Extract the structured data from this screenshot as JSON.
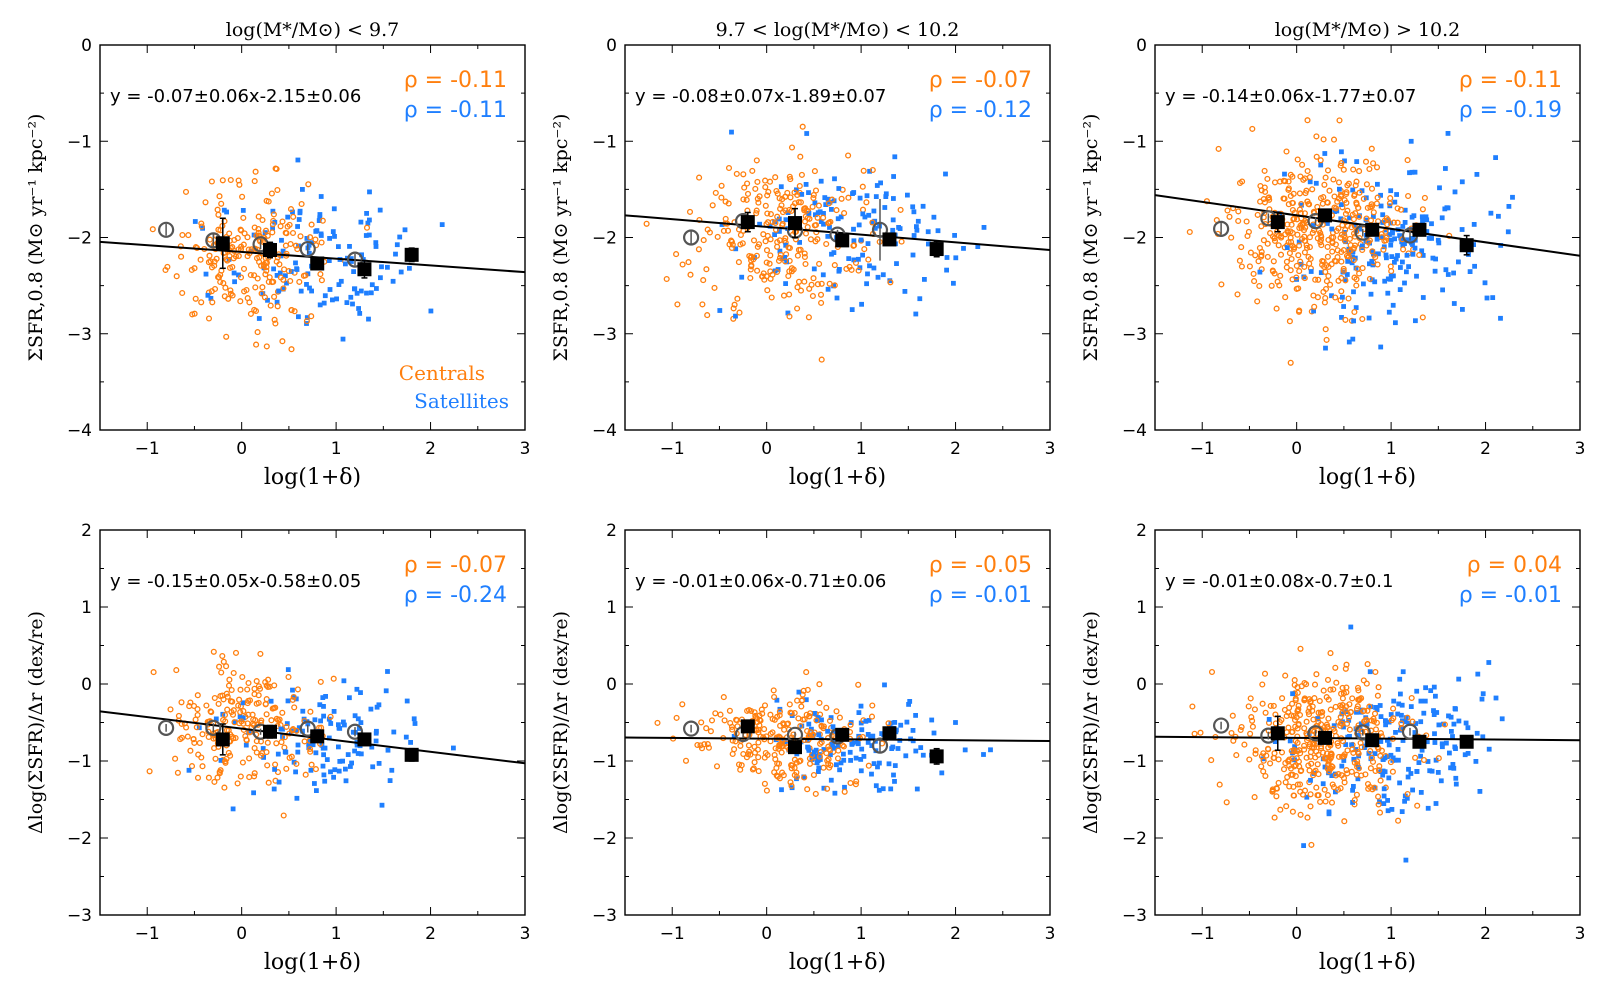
{
  "figure": {
    "legend": {
      "centrals_label": "Centrals",
      "satellites_label": "Satellites"
    },
    "colors": {
      "centrals": "#ff7f0e",
      "satellites": "#1f7fff",
      "binned": "#000000",
      "binned_open": "#555555"
    }
  },
  "chart_data": [
    {
      "type": "scatter",
      "panel": "top-left",
      "title": "log(M*/M⊙) < 9.7",
      "xlabel": "log(1+δ)",
      "ylabel": "ΣSFR,0.8 (M⊙ yr⁻¹ kpc⁻²)",
      "xlim": [
        -1.5,
        3
      ],
      "ylim": [
        -4,
        0
      ],
      "xticks": [
        -1,
        0,
        1,
        2,
        3
      ],
      "yticks": [
        -4,
        -3,
        -2,
        -1,
        0
      ],
      "fit_text": "y = -0.07±0.06x-2.15±0.06",
      "rho_centrals": "ρ = -0.11",
      "rho_satellites": "ρ = -0.11",
      "fit": {
        "slope": -0.07,
        "intercept": -2.15
      },
      "cloud": {
        "centrals": {
          "n": 230,
          "xmean": 0.05,
          "xsd": 0.4,
          "ymean": -2.15,
          "ysd": 0.38
        },
        "satellites": {
          "n": 130,
          "xmean": 0.9,
          "xsd": 0.55,
          "ymean": -2.25,
          "ysd": 0.35
        }
      },
      "binned_centrals": [
        {
          "x": -0.8,
          "y": -1.92,
          "err": 0.06
        },
        {
          "x": -0.3,
          "y": -2.03,
          "err": 0.07
        },
        {
          "x": 0.2,
          "y": -2.07,
          "err": 0.05
        },
        {
          "x": 0.7,
          "y": -2.12,
          "err": 0.05
        },
        {
          "x": 1.2,
          "y": -2.23,
          "err": 0.06
        }
      ],
      "binned_satellites": [
        {
          "x": -0.2,
          "y": -2.06,
          "err": 0.26
        },
        {
          "x": 0.3,
          "y": -2.13,
          "err": 0.08
        },
        {
          "x": 0.8,
          "y": -2.27,
          "err": 0.06
        },
        {
          "x": 1.3,
          "y": -2.33,
          "err": 0.09
        },
        {
          "x": 1.8,
          "y": -2.18,
          "err": 0.07
        }
      ]
    },
    {
      "type": "scatter",
      "panel": "top-middle",
      "title": "9.7 < log(M*/M⊙) < 10.2",
      "xlabel": "log(1+δ)",
      "ylabel": "ΣSFR,0.8 (M⊙ yr⁻¹ kpc⁻²)",
      "xlim": [
        -1.5,
        3
      ],
      "ylim": [
        -4,
        0
      ],
      "xticks": [
        -1,
        0,
        1,
        2,
        3
      ],
      "yticks": [
        -4,
        -3,
        -2,
        -1,
        0
      ],
      "fit_text": "y = -0.08±0.07x-1.89±0.07",
      "rho_centrals": "ρ = -0.07",
      "rho_satellites": "ρ = -0.12",
      "fit": {
        "slope": -0.08,
        "intercept": -1.89
      },
      "cloud": {
        "centrals": {
          "n": 260,
          "xmean": 0.15,
          "xsd": 0.45,
          "ymean": -1.95,
          "ysd": 0.4
        },
        "satellites": {
          "n": 140,
          "xmean": 0.9,
          "xsd": 0.55,
          "ymean": -2.0,
          "ysd": 0.38
        }
      },
      "binned_centrals": [
        {
          "x": -0.8,
          "y": -2.0,
          "err": 0.08
        },
        {
          "x": -0.25,
          "y": -1.83,
          "err": 0.06
        },
        {
          "x": 0.3,
          "y": -1.93,
          "err": 0.05
        },
        {
          "x": 0.75,
          "y": -1.97,
          "err": 0.05
        },
        {
          "x": 1.2,
          "y": -1.92,
          "err": 0.32
        }
      ],
      "binned_satellites": [
        {
          "x": -0.2,
          "y": -1.84,
          "err": 0.1
        },
        {
          "x": 0.3,
          "y": -1.85,
          "err": 0.15
        },
        {
          "x": 0.8,
          "y": -2.03,
          "err": 0.06
        },
        {
          "x": 1.3,
          "y": -2.02,
          "err": 0.06
        },
        {
          "x": 1.8,
          "y": -2.12,
          "err": 0.08
        }
      ]
    },
    {
      "type": "scatter",
      "panel": "top-right",
      "title": "log(M*/M⊙) > 10.2",
      "xlabel": "log(1+δ)",
      "ylabel": "ΣSFR,0.8 (M⊙ yr⁻¹ kpc⁻²)",
      "xlim": [
        -1.5,
        3
      ],
      "ylim": [
        -4,
        0
      ],
      "xticks": [
        -1,
        0,
        1,
        2,
        3
      ],
      "yticks": [
        -4,
        -3,
        -2,
        -1,
        0
      ],
      "fit_text": "y = -0.14±0.06x-1.77±0.07",
      "rho_centrals": "ρ = -0.11",
      "rho_satellites": "ρ = -0.19",
      "fit": {
        "slope": -0.14,
        "intercept": -1.77
      },
      "cloud": {
        "centrals": {
          "n": 420,
          "xmean": 0.25,
          "xsd": 0.45,
          "ymean": -1.95,
          "ysd": 0.4
        },
        "satellites": {
          "n": 200,
          "xmean": 1.0,
          "xsd": 0.5,
          "ymean": -2.05,
          "ysd": 0.38
        }
      },
      "binned_centrals": [
        {
          "x": -0.8,
          "y": -1.91,
          "err": 0.06
        },
        {
          "x": -0.3,
          "y": -1.8,
          "err": 0.05
        },
        {
          "x": 0.2,
          "y": -1.83,
          "err": 0.04
        },
        {
          "x": 0.7,
          "y": -1.95,
          "err": 0.04
        },
        {
          "x": 1.2,
          "y": -1.98,
          "err": 0.05
        }
      ],
      "binned_satellites": [
        {
          "x": -0.2,
          "y": -1.84,
          "err": 0.1
        },
        {
          "x": 0.3,
          "y": -1.77,
          "err": 0.06
        },
        {
          "x": 0.8,
          "y": -1.92,
          "err": 0.05
        },
        {
          "x": 1.3,
          "y": -1.92,
          "err": 0.05
        },
        {
          "x": 1.8,
          "y": -2.08,
          "err": 0.1
        }
      ]
    },
    {
      "type": "scatter",
      "panel": "bottom-left",
      "title": "",
      "xlabel": "log(1+δ)",
      "ylabel": "Δlog(ΣSFR)/Δr (dex/re)",
      "xlim": [
        -1.5,
        3
      ],
      "ylim": [
        -3,
        2
      ],
      "xticks": [
        -1,
        0,
        1,
        2,
        3
      ],
      "yticks": [
        -3,
        -2,
        -1,
        0,
        1,
        2
      ],
      "fit_text": "y = -0.15±0.05x-0.58±0.05",
      "rho_centrals": "ρ = -0.07",
      "rho_satellites": "ρ = -0.24",
      "fit": {
        "slope": -0.15,
        "intercept": -0.58
      },
      "cloud": {
        "centrals": {
          "n": 230,
          "xmean": 0.05,
          "xsd": 0.4,
          "ymean": -0.55,
          "ysd": 0.4
        },
        "satellites": {
          "n": 130,
          "xmean": 0.9,
          "xsd": 0.55,
          "ymean": -0.7,
          "ysd": 0.35
        }
      },
      "binned_centrals": [
        {
          "x": -0.8,
          "y": -0.57,
          "err": 0.05
        },
        {
          "x": -0.3,
          "y": -0.57,
          "err": 0.06
        },
        {
          "x": 0.2,
          "y": -0.62,
          "err": 0.04
        },
        {
          "x": 0.7,
          "y": -0.58,
          "err": 0.05
        },
        {
          "x": 1.2,
          "y": -0.62,
          "err": 0.06
        }
      ],
      "binned_satellites": [
        {
          "x": -0.2,
          "y": -0.72,
          "err": 0.2
        },
        {
          "x": 0.3,
          "y": -0.62,
          "err": 0.08
        },
        {
          "x": 0.8,
          "y": -0.68,
          "err": 0.05
        },
        {
          "x": 1.3,
          "y": -0.72,
          "err": 0.07
        },
        {
          "x": 1.8,
          "y": -0.92,
          "err": 0.08
        }
      ]
    },
    {
      "type": "scatter",
      "panel": "bottom-middle",
      "title": "",
      "xlabel": "log(1+δ)",
      "ylabel": "Δlog(ΣSFR)/Δr (dex/re)",
      "xlim": [
        -1.5,
        3
      ],
      "ylim": [
        -3,
        2
      ],
      "xticks": [
        -1,
        0,
        1,
        2,
        3
      ],
      "yticks": [
        -3,
        -2,
        -1,
        0,
        1,
        2
      ],
      "fit_text": "y = -0.01±0.06x-0.71±0.06",
      "rho_centrals": "ρ = -0.05",
      "rho_satellites": "ρ = -0.01",
      "fit": {
        "slope": -0.01,
        "intercept": -0.71
      },
      "cloud": {
        "centrals": {
          "n": 260,
          "xmean": 0.15,
          "xsd": 0.45,
          "ymean": -0.7,
          "ysd": 0.3
        },
        "satellites": {
          "n": 140,
          "xmean": 0.9,
          "xsd": 0.55,
          "ymean": -0.75,
          "ysd": 0.32
        }
      },
      "binned_centrals": [
        {
          "x": -0.8,
          "y": -0.58,
          "err": 0.05
        },
        {
          "x": -0.25,
          "y": -0.65,
          "err": 0.05
        },
        {
          "x": 0.3,
          "y": -0.66,
          "err": 0.04
        },
        {
          "x": 0.75,
          "y": -0.68,
          "err": 0.04
        },
        {
          "x": 1.2,
          "y": -0.8,
          "err": 0.1
        }
      ],
      "binned_satellites": [
        {
          "x": -0.2,
          "y": -0.55,
          "err": 0.06
        },
        {
          "x": 0.3,
          "y": -0.82,
          "err": 0.06
        },
        {
          "x": 0.8,
          "y": -0.66,
          "err": 0.05
        },
        {
          "x": 1.3,
          "y": -0.64,
          "err": 0.06
        },
        {
          "x": 1.8,
          "y": -0.94,
          "err": 0.1
        }
      ]
    },
    {
      "type": "scatter",
      "panel": "bottom-right",
      "title": "",
      "xlabel": "log(1+δ)",
      "ylabel": "Δlog(ΣSFR)/Δr (dex/re)",
      "xlim": [
        -1.5,
        3
      ],
      "ylim": [
        -3,
        2
      ],
      "xticks": [
        -1,
        0,
        1,
        2,
        3
      ],
      "yticks": [
        -3,
        -2,
        -1,
        0,
        1,
        2
      ],
      "fit_text": "y = -0.01±0.08x-0.7±0.1",
      "rho_centrals": "ρ = 0.04",
      "rho_satellites": "ρ = -0.01",
      "fit": {
        "slope": -0.01,
        "intercept": -0.7
      },
      "cloud": {
        "centrals": {
          "n": 420,
          "xmean": 0.25,
          "xsd": 0.45,
          "ymean": -0.7,
          "ysd": 0.45
        },
        "satellites": {
          "n": 200,
          "xmean": 1.0,
          "xsd": 0.5,
          "ymean": -0.8,
          "ysd": 0.45
        }
      },
      "binned_centrals": [
        {
          "x": -0.8,
          "y": -0.54,
          "err": 0.05
        },
        {
          "x": -0.3,
          "y": -0.67,
          "err": 0.05
        },
        {
          "x": 0.2,
          "y": -0.64,
          "err": 0.04
        },
        {
          "x": 0.7,
          "y": -0.63,
          "err": 0.04
        },
        {
          "x": 1.2,
          "y": -0.62,
          "err": 0.05
        }
      ],
      "binned_satellites": [
        {
          "x": -0.2,
          "y": -0.64,
          "err": 0.22
        },
        {
          "x": 0.3,
          "y": -0.7,
          "err": 0.06
        },
        {
          "x": 0.8,
          "y": -0.73,
          "err": 0.06
        },
        {
          "x": 1.3,
          "y": -0.75,
          "err": 0.06
        },
        {
          "x": 1.8,
          "y": -0.75,
          "err": 0.06
        }
      ]
    }
  ]
}
